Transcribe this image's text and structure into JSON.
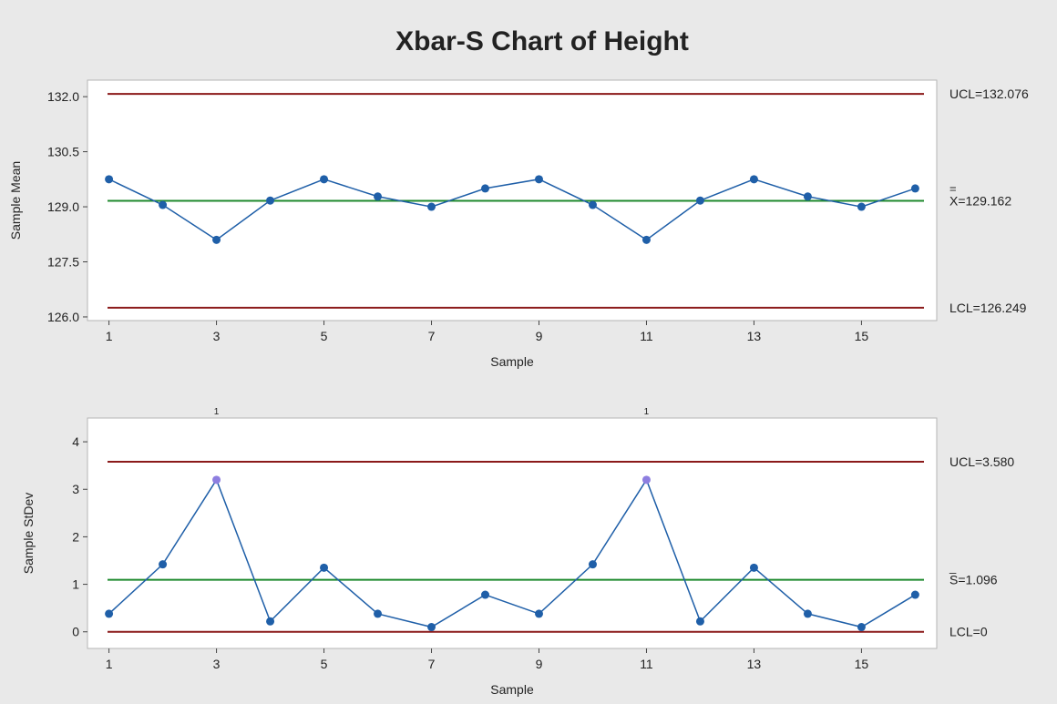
{
  "title": "Xbar-S Chart of Height",
  "colors": {
    "background": "#e9e9e9",
    "plot_bg": "#ffffff",
    "limit_line": "#8b1a1a",
    "center_line": "#1f8a2e",
    "series": "#1f5fa8",
    "highlight": "#8d7ee0"
  },
  "chart_data": [
    {
      "type": "line",
      "name": "xbar",
      "xlabel": "Sample",
      "ylabel": "Sample Mean",
      "x": [
        1,
        2,
        3,
        4,
        5,
        6,
        7,
        8,
        9,
        10,
        11,
        12,
        13,
        14,
        15,
        16
      ],
      "values": [
        129.75,
        129.05,
        128.1,
        129.17,
        129.75,
        129.28,
        129.0,
        129.5,
        129.75,
        129.05,
        128.1,
        129.17,
        129.75,
        129.28,
        129.0,
        129.5
      ],
      "xlim": [
        0.6,
        16.4
      ],
      "ylim": [
        125.9,
        132.45
      ],
      "xticks": [
        "1",
        "3",
        "5",
        "7",
        "9",
        "11",
        "13",
        "15"
      ],
      "xtick_values": [
        1,
        3,
        5,
        7,
        9,
        11,
        13,
        15
      ],
      "yticks": [
        "126.0",
        "127.5",
        "129.0",
        "130.5",
        "132.0"
      ],
      "ytick_values": [
        126.0,
        127.5,
        129.0,
        130.5,
        132.0
      ],
      "ucl": 132.076,
      "center": 129.162,
      "lcl": 126.249,
      "ucl_label": "UCL=132.076",
      "center_bar": "=",
      "center_label": "X=129.162",
      "lcl_label": "LCL=126.249"
    },
    {
      "type": "line",
      "name": "s",
      "xlabel": "Sample",
      "ylabel": "Sample StDev",
      "x": [
        1,
        2,
        3,
        4,
        5,
        6,
        7,
        8,
        9,
        10,
        11,
        12,
        13,
        14,
        15,
        16
      ],
      "values": [
        0.38,
        1.42,
        3.2,
        0.22,
        1.35,
        0.38,
        0.1,
        0.78,
        0.38,
        1.42,
        3.2,
        0.22,
        1.35,
        0.38,
        0.1,
        0.78
      ],
      "xlim": [
        0.6,
        16.4
      ],
      "ylim": [
        -0.35,
        4.5
      ],
      "xticks": [
        "1",
        "3",
        "5",
        "7",
        "9",
        "11",
        "13",
        "15"
      ],
      "xtick_values": [
        1,
        3,
        5,
        7,
        9,
        11,
        13,
        15
      ],
      "yticks": [
        "0",
        "1",
        "2",
        "3",
        "4"
      ],
      "ytick_values": [
        0,
        1,
        2,
        3,
        4
      ],
      "ucl": 3.58,
      "center": 1.096,
      "lcl": 0,
      "ucl_label": "UCL=3.580",
      "center_bar": "_",
      "center_label": "S=1.096",
      "lcl_label": "LCL=0",
      "flag_label": "1",
      "flagged_samples": [
        3,
        11
      ]
    }
  ]
}
